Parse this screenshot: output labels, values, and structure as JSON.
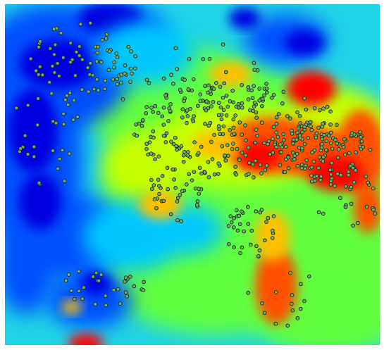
{
  "map": {
    "kind": "interpolated-heat-surface-with-sample-points",
    "color_scale": [
      "#0000e0",
      "#0050ff",
      "#00c8ff",
      "#20e8c0",
      "#60ff40",
      "#c8ff00",
      "#ffc000",
      "#ff5000",
      "#ff0000"
    ],
    "background_color": "#1fd3e6",
    "point_style": {
      "fill": "#7aa86a",
      "stroke": "#10301a"
    },
    "marker_icon": "circle-marker-icon"
  }
}
